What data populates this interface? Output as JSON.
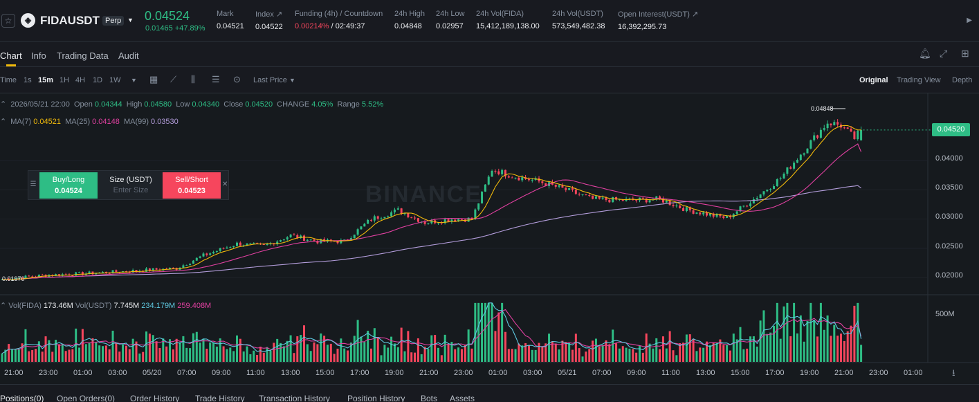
{
  "header": {
    "symbol": "FIDAUSDT",
    "badge": "Perp",
    "last_price": "0.04524",
    "change": "0.01465 +47.89%",
    "stats": [
      {
        "label": "Mark",
        "value": "0.04521"
      },
      {
        "label": "Index ↗",
        "value": "0.04522"
      },
      {
        "label": "Funding (4h) / Countdown",
        "value_a": "0.00214%",
        "value_b": " / 02:49:37"
      },
      {
        "label": "24h High",
        "value": "0.04848"
      },
      {
        "label": "24h Low",
        "value": "0.02957"
      },
      {
        "label": "24h Vol(FIDA)",
        "value": "15,412,189,138.00"
      },
      {
        "label": "24h Vol(USDT)",
        "value": "573,549,482.38"
      },
      {
        "label": "Open Interest(USDT) ↗",
        "value": "16,392,295.73"
      }
    ]
  },
  "tabs": [
    "Chart",
    "Info",
    "Trading Data",
    "Audit"
  ],
  "toolbar": {
    "intervals": [
      "Time",
      "1s",
      "15m",
      "1H",
      "4H",
      "1D",
      "1W"
    ],
    "selected_interval": "15m",
    "price_type": "Last Price",
    "views": [
      "Original",
      "Trading View",
      "Depth"
    ],
    "selected_view": "Original"
  },
  "chart_info": {
    "datetime": "2026/05/21 22:00",
    "open_label": "Open",
    "open": "0.04344",
    "high_label": "High",
    "high": "0.04580",
    "low_label": "Low",
    "low": "0.04340",
    "close_label": "Close",
    "close": "0.04520",
    "change_label": "CHANGE",
    "change": "4.05%",
    "range_label": "Range",
    "range": "5.52%",
    "ma7_label": "MA(7)",
    "ma7": "0.04521",
    "ma25_label": "MA(25)",
    "ma25": "0.04148",
    "ma99_label": "MA(99)",
    "ma99": "0.03530",
    "vol_fida_label": "Vol(FIDA)",
    "vol_fida": "173.46M",
    "vol_usdt_label": "Vol(USDT)",
    "vol_usdt": "7.745M",
    "vol_ma1": "234.179M",
    "vol_ma2": "259.408M",
    "watermark": "BINANCE",
    "current_price_tag": "0.04520",
    "high_marker": "0.04848",
    "low_marker": "0.01970"
  },
  "trade_panel": {
    "buy_label": "Buy/Long",
    "buy_price": "0.04524",
    "size_label": "Size (USDT)",
    "size_placeholder": "Enter Size",
    "sell_label": "Sell/Short",
    "sell_price": "0.04523"
  },
  "chart_data": {
    "type": "candlestick",
    "y_axis_ticks": [
      "0.04000",
      "0.03500",
      "0.03000",
      "0.02500",
      "0.02000"
    ],
    "volume_axis_ticks": [
      "500M"
    ],
    "x_axis_ticks": [
      "21:00",
      "23:00",
      "01:00",
      "03:00",
      "05/20",
      "07:00",
      "09:00",
      "11:00",
      "13:00",
      "15:00",
      "17:00",
      "19:00",
      "21:00",
      "23:00",
      "01:00",
      "03:00",
      "05/21",
      "07:00",
      "09:00",
      "11:00",
      "13:00",
      "15:00",
      "17:00",
      "19:00",
      "21:00",
      "23:00",
      "01:00"
    ],
    "ylim": [
      0.0178,
      0.0505
    ],
    "volume_ylim": [
      0,
      620
    ],
    "volume_unit": "M",
    "close_anchors": [
      {
        "t": 0,
        "v": 0.0197
      },
      {
        "t": 12,
        "v": 0.0204
      },
      {
        "t": 24,
        "v": 0.0207
      },
      {
        "t": 40,
        "v": 0.0212
      },
      {
        "t": 52,
        "v": 0.0216
      },
      {
        "t": 60,
        "v": 0.0238
      },
      {
        "t": 70,
        "v": 0.0258
      },
      {
        "t": 78,
        "v": 0.0254
      },
      {
        "t": 86,
        "v": 0.0272
      },
      {
        "t": 94,
        "v": 0.0262
      },
      {
        "t": 102,
        "v": 0.0262
      },
      {
        "t": 110,
        "v": 0.03
      },
      {
        "t": 118,
        "v": 0.0315
      },
      {
        "t": 126,
        "v": 0.0294
      },
      {
        "t": 134,
        "v": 0.03
      },
      {
        "t": 140,
        "v": 0.03
      },
      {
        "t": 146,
        "v": 0.0385
      },
      {
        "t": 152,
        "v": 0.0374
      },
      {
        "t": 160,
        "v": 0.0364
      },
      {
        "t": 168,
        "v": 0.035
      },
      {
        "t": 176,
        "v": 0.0334
      },
      {
        "t": 186,
        "v": 0.0332
      },
      {
        "t": 196,
        "v": 0.0334
      },
      {
        "t": 204,
        "v": 0.0316
      },
      {
        "t": 212,
        "v": 0.0306
      },
      {
        "t": 216,
        "v": 0.0302
      },
      {
        "t": 224,
        "v": 0.0334
      },
      {
        "t": 232,
        "v": 0.037
      },
      {
        "t": 240,
        "v": 0.0425
      },
      {
        "t": 246,
        "v": 0.0465
      },
      {
        "t": 250,
        "v": 0.046
      },
      {
        "t": 254,
        "v": 0.0438
      },
      {
        "t": 256,
        "v": 0.0452
      }
    ],
    "last_candle": {
      "open": 0.04344,
      "high": 0.0458,
      "low": 0.0434,
      "close": 0.0452
    },
    "ma_last": {
      "ma7": 0.04521,
      "ma25": 0.04148,
      "ma99": 0.0353
    },
    "volume_last": {
      "vol": 173.46,
      "ma1": 234.179,
      "ma2": 259.408
    },
    "colors": {
      "up": "#2ebd85",
      "down": "#f6465d",
      "ma7": "#f0b90b",
      "ma25": "#e040a0",
      "ma99": "#b39ddb",
      "vol_ma1": "#5ec8e0",
      "vol_ma2": "#e040a0"
    }
  },
  "bottom_tabs": [
    "Positions(0)",
    "Open Orders(0)",
    "Order History",
    "Trade History",
    "Transaction History",
    "Position History",
    "Bots",
    "Assets"
  ]
}
